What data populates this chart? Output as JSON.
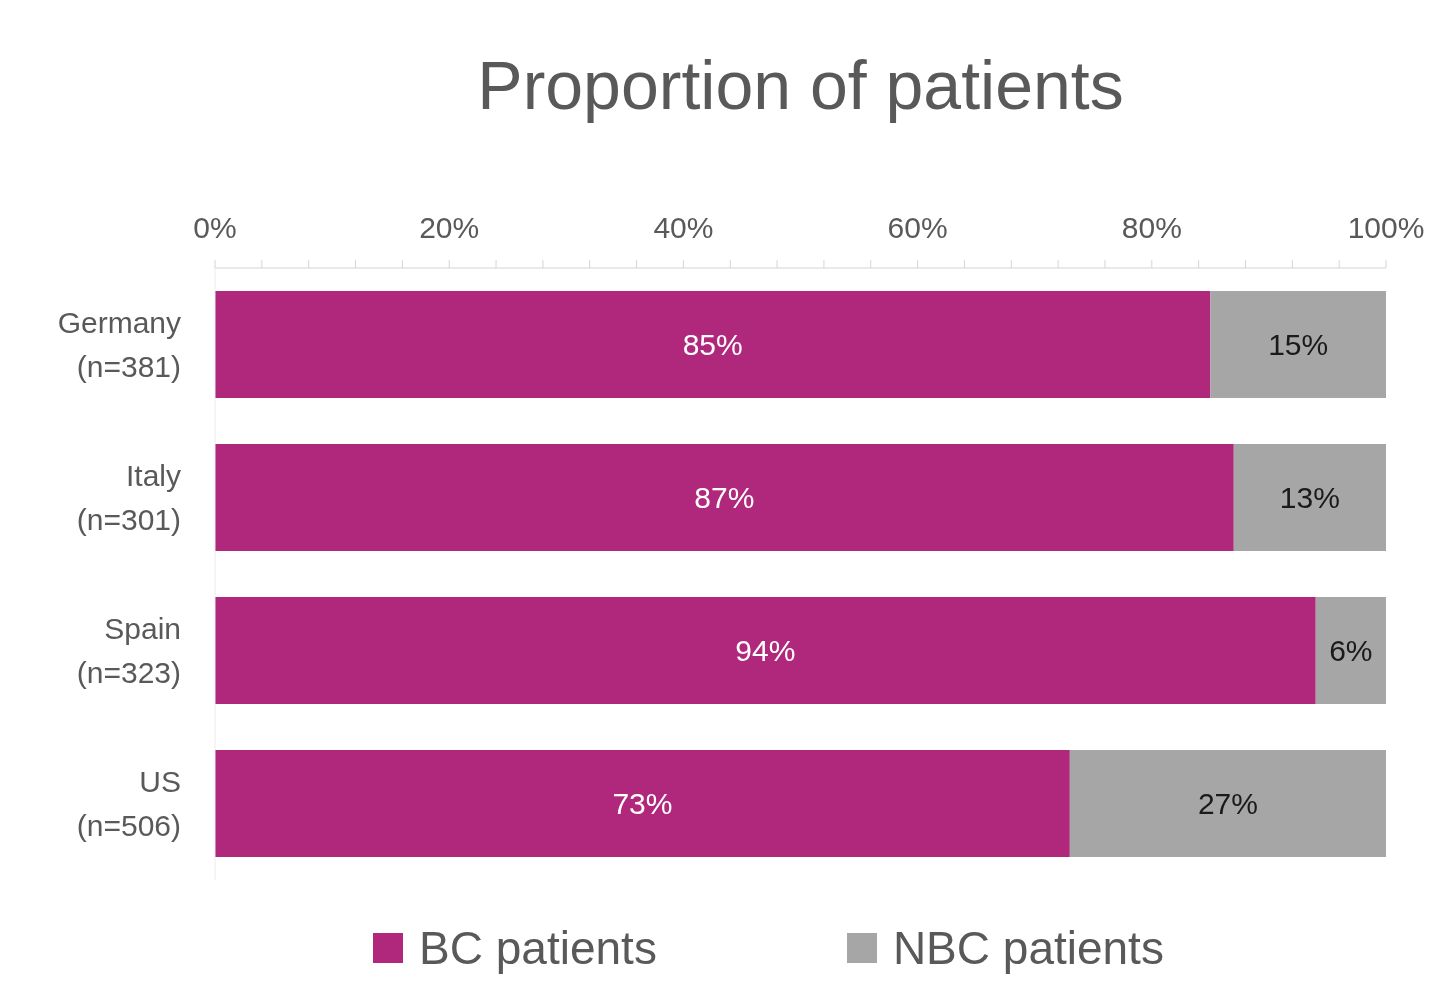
{
  "chart_data": {
    "type": "bar",
    "title": "Proportion of patients",
    "orientation": "horizontal",
    "stacked": true,
    "categories": [
      "Germany (n=381)",
      "Italy (n=301)",
      "Spain (n=323)",
      "US (n=506)"
    ],
    "series": [
      {
        "name": "BC patients",
        "color": "#b0287c",
        "values": [
          85,
          87,
          94,
          73
        ],
        "value_labels": [
          "85%",
          "87%",
          "94%",
          "73%"
        ]
      },
      {
        "name": "NBC patients",
        "color": "#a6a6a6",
        "values": [
          15,
          13,
          6,
          27
        ],
        "value_labels": [
          "15%",
          "13%",
          "6%",
          "27%"
        ]
      }
    ],
    "xlim": [
      0,
      100
    ],
    "xticks": [
      {
        "value": 0,
        "label": "0%"
      },
      {
        "value": 4,
        "label": null
      },
      {
        "value": 8,
        "label": null
      },
      {
        "value": 12,
        "label": null
      },
      {
        "value": 16,
        "label": null
      },
      {
        "value": 20,
        "label": "20%"
      },
      {
        "value": 24,
        "label": null
      },
      {
        "value": 28,
        "label": null
      },
      {
        "value": 32,
        "label": null
      },
      {
        "value": 36,
        "label": null
      },
      {
        "value": 40,
        "label": "40%"
      },
      {
        "value": 44,
        "label": null
      },
      {
        "value": 48,
        "label": null
      },
      {
        "value": 52,
        "label": null
      },
      {
        "value": 56,
        "label": null
      },
      {
        "value": 60,
        "label": "60%"
      },
      {
        "value": 64,
        "label": null
      },
      {
        "value": 68,
        "label": null
      },
      {
        "value": 72,
        "label": null
      },
      {
        "value": 76,
        "label": null
      },
      {
        "value": 80,
        "label": "80%"
      },
      {
        "value": 84,
        "label": null
      },
      {
        "value": 88,
        "label": null
      },
      {
        "value": 92,
        "label": null
      },
      {
        "value": 96,
        "label": null
      },
      {
        "value": 100,
        "label": "100%"
      }
    ],
    "legend": "bottom"
  }
}
